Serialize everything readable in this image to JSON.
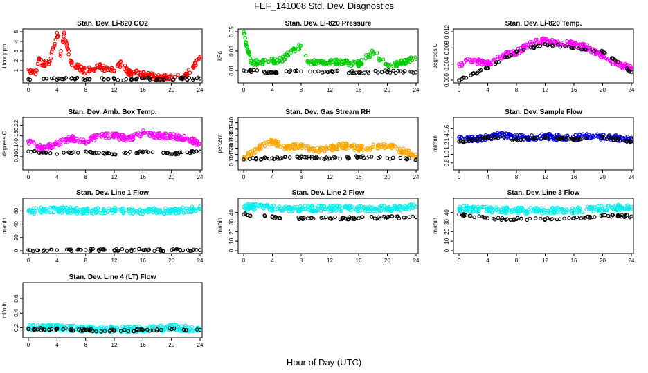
{
  "figure": {
    "title": "FEF_141008  Std. Dev. Diagnostics",
    "xlabel": "Hour of Day (UTC)"
  },
  "chart_data": [
    {
      "type": "scatter",
      "title": "Stan. Dev. Li-820 CO2",
      "ylabel": "Licor ppm",
      "xlim": [
        0,
        24
      ],
      "ylim": [
        0,
        5
      ],
      "xticks": [
        "0",
        "4",
        "8",
        "12",
        "16",
        "20",
        "24"
      ],
      "yticks": [
        "1",
        "2",
        "3",
        "4",
        "5"
      ],
      "grid": false,
      "series": [
        {
          "color": "#ff0000",
          "y_at_hours": [
            [
              0,
              1.1
            ],
            [
              1,
              0.6
            ],
            [
              1.5,
              2.3
            ],
            [
              2,
              1.6
            ],
            [
              3,
              1.9
            ],
            [
              4,
              4.9
            ],
            [
              4.5,
              2.7
            ],
            [
              5,
              4.8
            ],
            [
              5.5,
              3.2
            ],
            [
              6,
              1.8
            ],
            [
              8,
              0.9
            ],
            [
              10,
              1.4
            ],
            [
              12,
              0.9
            ],
            [
              13,
              1.8
            ],
            [
              14,
              0.8
            ],
            [
              16,
              0.6
            ],
            [
              18,
              0.3
            ],
            [
              20,
              0.3
            ],
            [
              22,
              0.4
            ],
            [
              24,
              2.4
            ]
          ]
        },
        {
          "color": "#000000",
          "y_at_hours": [
            [
              0,
              0.1
            ],
            [
              6,
              0.15
            ],
            [
              12,
              0.1
            ],
            [
              18,
              0.12
            ],
            [
              24,
              0.15
            ]
          ]
        }
      ]
    },
    {
      "type": "scatter",
      "title": "Stan. Dev. Li-820 Pressure",
      "ylabel": "kPa",
      "xlim": [
        0,
        24
      ],
      "ylim": [
        0,
        0.05
      ],
      "xticks": [
        "0",
        "4",
        "8",
        "12",
        "16",
        "20",
        "24"
      ],
      "yticks": [
        "0.01",
        "0.03",
        "0.05"
      ],
      "grid": false,
      "series": [
        {
          "color": "#00cc00",
          "y_at_hours": [
            [
              0,
              0.05
            ],
            [
              1,
              0.018
            ],
            [
              4,
              0.02
            ],
            [
              5,
              0.02
            ],
            [
              8,
              0.036
            ],
            [
              9,
              0.018
            ],
            [
              12,
              0.019
            ],
            [
              16,
              0.017
            ],
            [
              18,
              0.029
            ],
            [
              20,
              0.015
            ],
            [
              24,
              0.022
            ]
          ]
        },
        {
          "color": "#000000",
          "y_at_hours": [
            [
              0,
              0.01
            ],
            [
              4,
              0.008
            ],
            [
              8,
              0.009
            ],
            [
              12,
              0.009
            ],
            [
              16,
              0.008
            ],
            [
              20,
              0.009
            ],
            [
              24,
              0.008
            ]
          ]
        }
      ]
    },
    {
      "type": "scatter",
      "title": "Stan. Dev. Li-820 Temp.",
      "ylabel": "degrees C",
      "xlim": [
        0,
        24
      ],
      "ylim": [
        0,
        0.012
      ],
      "xticks": [
        "0",
        "4",
        "8",
        "12",
        "16",
        "20",
        "24"
      ],
      "yticks": [
        "0.000",
        "0.004",
        "0.008",
        "0.012"
      ],
      "grid": false,
      "series": [
        {
          "color": "#ff00ff",
          "y_at_hours": [
            [
              0,
              0.004
            ],
            [
              2,
              0.005
            ],
            [
              4,
              0.004
            ],
            [
              6,
              0.006
            ],
            [
              8,
              0.007
            ],
            [
              10,
              0.009
            ],
            [
              12,
              0.01
            ],
            [
              14,
              0.009
            ],
            [
              16,
              0.009
            ],
            [
              18,
              0.008
            ],
            [
              20,
              0.006
            ],
            [
              22,
              0.004
            ],
            [
              24,
              0.003
            ]
          ]
        },
        {
          "color": "#000000",
          "y_at_hours": [
            [
              0,
              0.0
            ],
            [
              4,
              0.003
            ],
            [
              8,
              0.007
            ],
            [
              12,
              0.009
            ],
            [
              16,
              0.008
            ],
            [
              20,
              0.007
            ],
            [
              24,
              0.002
            ]
          ]
        }
      ]
    },
    {
      "type": "scatter",
      "title": "Stan. Dev. Amb. Box Temp.",
      "ylabel": "degrees C",
      "xlim": [
        0,
        24
      ],
      "ylim": [
        0.06,
        0.24
      ],
      "xticks": [
        "0",
        "4",
        "8",
        "12",
        "16",
        "20",
        "24"
      ],
      "yticks": [
        "0.10",
        "0.14",
        "0.18",
        "0.22"
      ],
      "grid": false,
      "series": [
        {
          "color": "#ff00ff",
          "y_at_hours": [
            [
              0,
              0.16
            ],
            [
              2,
              0.13
            ],
            [
              4,
              0.15
            ],
            [
              6,
              0.17
            ],
            [
              8,
              0.16
            ],
            [
              10,
              0.18
            ],
            [
              12,
              0.18
            ],
            [
              14,
              0.17
            ],
            [
              16,
              0.19
            ],
            [
              18,
              0.18
            ],
            [
              20,
              0.18
            ],
            [
              22,
              0.17
            ],
            [
              24,
              0.15
            ]
          ]
        },
        {
          "color": "#000000",
          "y_at_hours": [
            [
              0,
              0.12
            ],
            [
              4,
              0.11
            ],
            [
              8,
              0.12
            ],
            [
              12,
              0.11
            ],
            [
              16,
              0.12
            ],
            [
              20,
              0.11
            ],
            [
              24,
              0.12
            ]
          ]
        }
      ]
    },
    {
      "type": "scatter",
      "title": "Stan. Dev. Gas Stream RH",
      "ylabel": "percent",
      "xlim": [
        0,
        24
      ],
      "ylim": [
        0.05,
        0.42
      ],
      "xticks": [
        "0",
        "4",
        "8",
        "12",
        "16",
        "20",
        "24"
      ],
      "yticks": [
        "0.10",
        "0.15",
        "0.20",
        "0.25",
        "0.30",
        "0.35",
        "0.40"
      ],
      "grid": false,
      "series": [
        {
          "color": "#ffa500",
          "y_at_hours": [
            [
              0,
              0.12
            ],
            [
              2,
              0.2
            ],
            [
              4,
              0.25
            ],
            [
              6,
              0.2
            ],
            [
              8,
              0.22
            ],
            [
              10,
              0.18
            ],
            [
              12,
              0.2
            ],
            [
              14,
              0.22
            ],
            [
              16,
              0.2
            ],
            [
              18,
              0.21
            ],
            [
              20,
              0.22
            ],
            [
              22,
              0.18
            ],
            [
              24,
              0.15
            ]
          ]
        },
        {
          "color": "#000000",
          "y_at_hours": [
            [
              0,
              0.11
            ],
            [
              4,
              0.12
            ],
            [
              8,
              0.13
            ],
            [
              12,
              0.12
            ],
            [
              16,
              0.13
            ],
            [
              20,
              0.12
            ],
            [
              24,
              0.11
            ]
          ]
        }
      ]
    },
    {
      "type": "scatter",
      "title": "Stan. Dev. Sample Flow",
      "ylabel": "ml/min",
      "xlim": [
        0,
        24
      ],
      "ylim": [
        0.7,
        1.8
      ],
      "xticks": [
        "0",
        "4",
        "8",
        "12",
        "16",
        "20",
        "24"
      ],
      "yticks": [
        "0.8",
        "1.0",
        "1.2",
        "1.4",
        "1.6"
      ],
      "grid": false,
      "series": [
        {
          "color": "#0000cc",
          "y_at_hours": [
            [
              0,
              1.4
            ],
            [
              2,
              1.35
            ],
            [
              4,
              1.4
            ],
            [
              6,
              1.45
            ],
            [
              8,
              1.4
            ],
            [
              10,
              1.38
            ],
            [
              12,
              1.42
            ],
            [
              14,
              1.4
            ],
            [
              16,
              1.4
            ],
            [
              18,
              1.42
            ],
            [
              20,
              1.4
            ],
            [
              22,
              1.38
            ],
            [
              24,
              1.35
            ]
          ]
        },
        {
          "color": "#000000",
          "y_at_hours": [
            [
              0,
              1.3
            ],
            [
              4,
              1.4
            ],
            [
              8,
              1.35
            ],
            [
              12,
              1.4
            ],
            [
              16,
              1.35
            ],
            [
              20,
              1.4
            ],
            [
              24,
              1.3
            ]
          ]
        }
      ]
    },
    {
      "type": "scatter",
      "title": "Stan. Dev. Line 1 Flow",
      "ylabel": "ml/min",
      "xlim": [
        0,
        24
      ],
      "ylim": [
        0,
        75
      ],
      "xticks": [
        "0",
        "4",
        "8",
        "12",
        "16",
        "20",
        "24"
      ],
      "yticks": [
        "0",
        "20",
        "40",
        "60"
      ],
      "grid": false,
      "series": [
        {
          "color": "#00eeee",
          "y_at_hours": [
            [
              0,
              60
            ],
            [
              4,
              62
            ],
            [
              8,
              60
            ],
            [
              12,
              61
            ],
            [
              16,
              60
            ],
            [
              20,
              60
            ],
            [
              24,
              63
            ]
          ]
        },
        {
          "color": "#000000",
          "y_at_hours": [
            [
              0,
              1
            ],
            [
              4,
              1
            ],
            [
              8,
              1
            ],
            [
              12,
              1
            ],
            [
              16,
              1
            ],
            [
              20,
              1
            ],
            [
              24,
              1
            ]
          ]
        }
      ]
    },
    {
      "type": "scatter",
      "title": "Stan. Dev. Line 2 Flow",
      "ylabel": "ml/min",
      "xlim": [
        0,
        24
      ],
      "ylim": [
        0,
        52
      ],
      "xticks": [
        "0",
        "4",
        "8",
        "12",
        "16",
        "20",
        "24"
      ],
      "yticks": [
        "0",
        "10",
        "20",
        "30",
        "40"
      ],
      "grid": false,
      "series": [
        {
          "color": "#00eeee",
          "y_at_hours": [
            [
              0,
              46
            ],
            [
              4,
              45
            ],
            [
              8,
              44
            ],
            [
              12,
              44
            ],
            [
              16,
              44
            ],
            [
              20,
              44
            ],
            [
              24,
              46
            ]
          ]
        },
        {
          "color": "#000000",
          "y_at_hours": [
            [
              0,
              38
            ],
            [
              4,
              35
            ],
            [
              8,
              34
            ],
            [
              12,
              34
            ],
            [
              16,
              34
            ],
            [
              20,
              35
            ],
            [
              24,
              35
            ]
          ]
        }
      ]
    },
    {
      "type": "scatter",
      "title": "Stan. Dev. Line 3 Flow",
      "ylabel": "ml/min",
      "xlim": [
        0,
        24
      ],
      "ylim": [
        0,
        52
      ],
      "xticks": [
        "0",
        "4",
        "8",
        "12",
        "16",
        "20",
        "24"
      ],
      "yticks": [
        "0",
        "10",
        "20",
        "30",
        "40"
      ],
      "grid": false,
      "series": [
        {
          "color": "#00eeee",
          "y_at_hours": [
            [
              0,
              44
            ],
            [
              4,
              43
            ],
            [
              8,
              42
            ],
            [
              12,
              42
            ],
            [
              16,
              42
            ],
            [
              20,
              44
            ],
            [
              24,
              46
            ]
          ]
        },
        {
          "color": "#000000",
          "y_at_hours": [
            [
              0,
              38
            ],
            [
              4,
              34
            ],
            [
              8,
              33
            ],
            [
              12,
              33
            ],
            [
              16,
              34
            ],
            [
              20,
              37
            ],
            [
              24,
              36
            ]
          ]
        }
      ]
    },
    {
      "type": "scatter",
      "title": "Stan. Dev. Line 4 (LT) Flow",
      "ylabel": "ml/min",
      "xlim": [
        0,
        24
      ],
      "ylim": [
        0.1,
        0.78
      ],
      "xticks": [
        "0",
        "4",
        "8",
        "12",
        "16",
        "20",
        "24"
      ],
      "yticks": [
        "0.2",
        "0.4",
        "0.6"
      ],
      "grid": false,
      "series": [
        {
          "color": "#00eeee",
          "y_at_hours": [
            [
              0,
              0.2
            ],
            [
              4,
              0.2
            ],
            [
              8,
              0.18
            ],
            [
              12,
              0.18
            ],
            [
              16,
              0.18
            ],
            [
              20,
              0.2
            ],
            [
              24,
              0.18
            ]
          ]
        },
        {
          "color": "#000000",
          "y_at_hours": [
            [
              0,
              0.18
            ],
            [
              4,
              0.18
            ],
            [
              8,
              0.17
            ],
            [
              12,
              0.16
            ],
            [
              16,
              0.17
            ],
            [
              20,
              0.18
            ],
            [
              24,
              0.17
            ]
          ]
        }
      ]
    }
  ]
}
